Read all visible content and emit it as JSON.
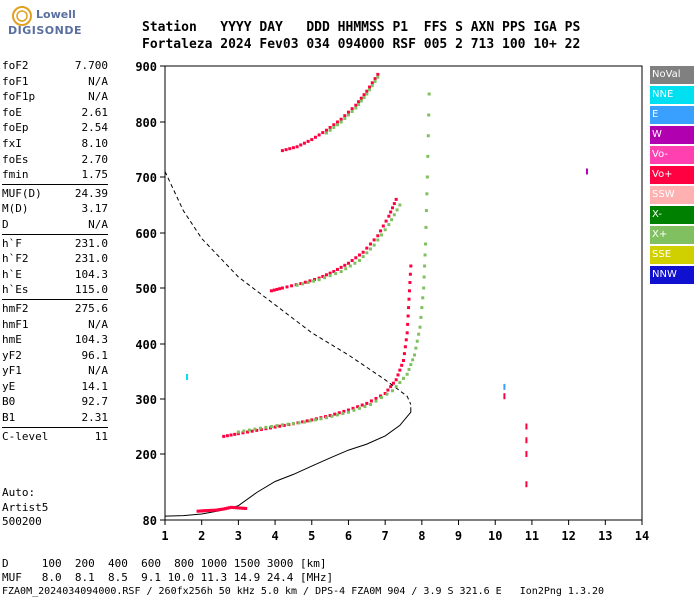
{
  "logo": {
    "line1": "Lowell",
    "line2": "DIGISONDE"
  },
  "header": {
    "row1": "Station   YYYY DAY   DDD HHMMSS P1  FFS S AXN PPS IGA PS",
    "row2": "Fortaleza 2024 Fev03 034 094000 RSF 005 2 713 100 10+ 22"
  },
  "params": {
    "group1": [
      {
        "label": "foF2",
        "value": "7.700"
      },
      {
        "label": "foF1",
        "value": "N/A"
      },
      {
        "label": "foF1p",
        "value": "N/A"
      },
      {
        "label": "foE",
        "value": "2.61"
      },
      {
        "label": "foEp",
        "value": "2.54"
      },
      {
        "label": "fxI",
        "value": "8.10"
      },
      {
        "label": "foEs",
        "value": "2.70"
      },
      {
        "label": "fmin",
        "value": "1.75"
      }
    ],
    "group2": [
      {
        "label": "MUF(D)",
        "value": "24.39"
      },
      {
        "label": "M(D)",
        "value": "3.17"
      },
      {
        "label": "D",
        "value": "N/A"
      }
    ],
    "group3": [
      {
        "label": "h`F",
        "value": "231.0"
      },
      {
        "label": "h`F2",
        "value": "231.0"
      },
      {
        "label": "h`E",
        "value": "104.3"
      },
      {
        "label": "h`Es",
        "value": "115.0"
      }
    ],
    "group4": [
      {
        "label": "hmF2",
        "value": "275.6"
      },
      {
        "label": "hmF1",
        "value": "N/A"
      },
      {
        "label": "hmE",
        "value": "104.3"
      },
      {
        "label": "yF2",
        "value": "96.1"
      },
      {
        "label": "yF1",
        "value": "N/A"
      },
      {
        "label": "yE",
        "value": "14.1"
      },
      {
        "label": "B0",
        "value": "92.7"
      },
      {
        "label": "B1",
        "value": "2.31"
      }
    ],
    "group5": [
      {
        "label": "C-level",
        "value": "11"
      }
    ]
  },
  "auto": {
    "line1": "Auto:",
    "line2": "Artist5",
    "line3": "500200"
  },
  "legend": [
    {
      "label": "NoVal",
      "color": "#808080",
      "text": "#ffffff"
    },
    {
      "label": "NNE",
      "color": "#00e0f0",
      "text": "#ffffff"
    },
    {
      "label": "E",
      "color": "#3aa0ff",
      "text": "#ffffff"
    },
    {
      "label": "W",
      "color": "#b000b0",
      "text": "#ffffff"
    },
    {
      "label": "Vo-",
      "color": "#ff40b0",
      "text": "#ffffff"
    },
    {
      "label": "Vo+",
      "color": "#ff0040",
      "text": "#ffffff"
    },
    {
      "label": "SSW",
      "color": "#ffb0b0",
      "text": "#ffffff"
    },
    {
      "label": "X-",
      "color": "#008000",
      "text": "#ffffff"
    },
    {
      "label": "X+",
      "color": "#80c060",
      "text": "#ffffff"
    },
    {
      "label": "SSE",
      "color": "#d0d000",
      "text": "#ffffff"
    },
    {
      "label": "NNW",
      "color": "#1010d0",
      "text": "#ffffff"
    }
  ],
  "bottom": {
    "dline": "D     100  200  400  600  800 1000 1500 3000 [km]",
    "mufline": "MUF   8.0  8.1  8.5  9.1 10.0 11.3 14.9 24.4 [MHz]",
    "footer": "FZA0M_2024034094000.RSF / 260fx256h 50 kHz 5.0 km / DPS-4 FZA0M 904 / 3.9 S 321.6 E   Ion2Png 1.3.20"
  },
  "chart_data": {
    "type": "scatter",
    "xlim": [
      1,
      14
    ],
    "ylim": [
      80,
      900
    ],
    "xticks": [
      "1",
      "2",
      "3",
      "4",
      "5",
      "6",
      "7",
      "8",
      "9",
      "10",
      "11",
      "12",
      "13",
      "14"
    ],
    "yticks": [
      "80",
      "200",
      "300",
      "400",
      "500",
      "600",
      "700",
      "800",
      "900"
    ],
    "grid": false,
    "profile_solid": [
      [
        1,
        87
      ],
      [
        1.5,
        88
      ],
      [
        2,
        91
      ],
      [
        2.5,
        97
      ],
      [
        3,
        106
      ],
      [
        3.5,
        130
      ],
      [
        4,
        150
      ],
      [
        4.5,
        163
      ],
      [
        5,
        178
      ],
      [
        5.5,
        193
      ],
      [
        6,
        207
      ],
      [
        6.5,
        218
      ],
      [
        7,
        233
      ],
      [
        7.4,
        252
      ],
      [
        7.7,
        276
      ],
      [
        7.7,
        285
      ]
    ],
    "profile_dashed": [
      [
        1,
        710
      ],
      [
        1.5,
        640
      ],
      [
        2,
        590
      ],
      [
        3,
        520
      ],
      [
        4,
        470
      ],
      [
        5,
        420
      ],
      [
        6,
        380
      ],
      [
        7,
        335
      ],
      [
        7.6,
        305
      ],
      [
        7.7,
        290
      ]
    ],
    "traces": [
      {
        "name": "E",
        "mode": "Vo+",
        "points": [
          [
            1.9,
            96
          ],
          [
            2.1,
            97
          ],
          [
            2.4,
            98
          ],
          [
            2.6,
            100
          ],
          [
            2.8,
            103
          ],
          [
            3.0,
            102
          ],
          [
            3.2,
            101
          ]
        ]
      },
      {
        "name": "F2 1st hop",
        "mode": "Vo+",
        "points": [
          [
            2.6,
            232
          ],
          [
            3.0,
            237
          ],
          [
            3.5,
            243
          ],
          [
            4.0,
            249
          ],
          [
            4.5,
            255
          ],
          [
            5.0,
            262
          ],
          [
            5.5,
            270
          ],
          [
            6.0,
            280
          ],
          [
            6.5,
            292
          ],
          [
            7.0,
            310
          ],
          [
            7.3,
            335
          ],
          [
            7.5,
            370
          ],
          [
            7.6,
            420
          ],
          [
            7.65,
            480
          ],
          [
            7.7,
            540
          ]
        ]
      },
      {
        "name": "F2 1st hop X",
        "mode": "X+",
        "points": [
          [
            3.0,
            240
          ],
          [
            3.6,
            247
          ],
          [
            4.2,
            253
          ],
          [
            4.8,
            258
          ],
          [
            5.4,
            266
          ],
          [
            6.0,
            276
          ],
          [
            6.6,
            290
          ],
          [
            7.2,
            315
          ],
          [
            7.6,
            345
          ],
          [
            7.8,
            380
          ],
          [
            7.95,
            430
          ],
          [
            8.05,
            500
          ],
          [
            8.1,
            580
          ],
          [
            8.15,
            700
          ],
          [
            8.2,
            850
          ]
        ]
      },
      {
        "name": "F2 2nd hop",
        "mode": "Vo+",
        "points": [
          [
            3.9,
            495
          ],
          [
            4.2,
            500
          ],
          [
            4.7,
            508
          ],
          [
            5.2,
            518
          ],
          [
            5.6,
            530
          ],
          [
            6.0,
            545
          ],
          [
            6.4,
            565
          ],
          [
            6.8,
            595
          ],
          [
            7.1,
            630
          ],
          [
            7.3,
            660
          ]
        ]
      },
      {
        "name": "F2 2nd hop X",
        "mode": "X+",
        "points": [
          [
            4.6,
            505
          ],
          [
            5.2,
            515
          ],
          [
            5.8,
            530
          ],
          [
            6.3,
            550
          ],
          [
            6.7,
            578
          ],
          [
            7.1,
            615
          ],
          [
            7.4,
            650
          ]
        ]
      },
      {
        "name": "F2 3rd hop",
        "mode": "Vo+",
        "points": [
          [
            4.2,
            748
          ],
          [
            4.6,
            755
          ],
          [
            5.0,
            768
          ],
          [
            5.4,
            785
          ],
          [
            5.8,
            805
          ],
          [
            6.2,
            830
          ],
          [
            6.5,
            855
          ],
          [
            6.8,
            885
          ]
        ]
      },
      {
        "name": "F2 3rd hop X",
        "mode": "X+",
        "points": [
          [
            5.4,
            780
          ],
          [
            5.8,
            800
          ],
          [
            6.2,
            825
          ],
          [
            6.5,
            850
          ],
          [
            6.8,
            880
          ]
        ]
      }
    ],
    "isolated": [
      {
        "x": 1.6,
        "y": 340,
        "mode": "NNE"
      },
      {
        "x": 10.25,
        "y": 322,
        "mode": "E"
      },
      {
        "x": 10.25,
        "y": 305,
        "mode": "Vo+"
      },
      {
        "x": 10.85,
        "y": 250,
        "mode": "Vo+"
      },
      {
        "x": 10.85,
        "y": 225,
        "mode": "Vo+"
      },
      {
        "x": 10.85,
        "y": 200,
        "mode": "Vo+"
      },
      {
        "x": 10.85,
        "y": 145,
        "mode": "Vo+"
      },
      {
        "x": 12.5,
        "y": 710,
        "mode": "W"
      }
    ]
  }
}
